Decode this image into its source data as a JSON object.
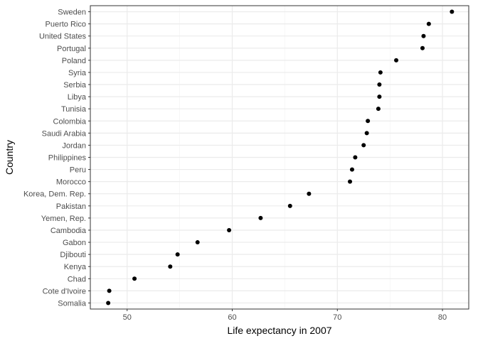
{
  "chart_data": {
    "type": "scatter",
    "xlabel": "Life expectancy in 2007",
    "ylabel": "Country",
    "xlim": [
      46.5,
      82.5
    ],
    "xticks": [
      50,
      60,
      70,
      80
    ],
    "grid": true,
    "categories": [
      "Sweden",
      "Puerto Rico",
      "United States",
      "Portugal",
      "Poland",
      "Syria",
      "Serbia",
      "Libya",
      "Tunisia",
      "Colombia",
      "Saudi Arabia",
      "Jordan",
      "Philippines",
      "Peru",
      "Morocco",
      "Korea, Dem. Rep.",
      "Pakistan",
      "Yemen, Rep.",
      "Cambodia",
      "Gabon",
      "Djibouti",
      "Kenya",
      "Chad",
      "Cote d'Ivoire",
      "Somalia"
    ],
    "values": [
      80.9,
      78.7,
      78.2,
      78.1,
      75.6,
      74.1,
      74.0,
      74.0,
      73.9,
      72.9,
      72.8,
      72.5,
      71.7,
      71.4,
      71.2,
      67.3,
      65.5,
      62.7,
      59.7,
      56.7,
      54.8,
      54.1,
      50.7,
      48.3,
      48.2
    ]
  }
}
